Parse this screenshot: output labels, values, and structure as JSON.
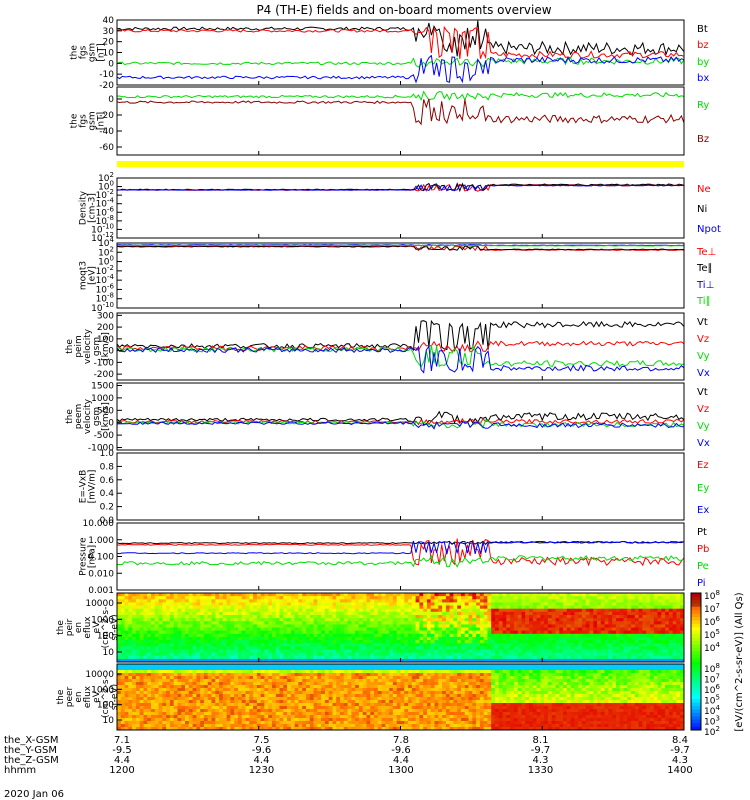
{
  "title": "P4 (TH-E) fields and on-board moments overview",
  "date_label": "2020 Jan 06",
  "colorbar": {
    "label": "[eV/(cm^2-s-sr-eV)] (All Qs)",
    "ticks": [
      "10^2",
      "10^3",
      "10^4",
      "10^5",
      "10^6",
      "10^7",
      "10^8"
    ],
    "upper_ticks": [
      "10^4",
      "10^5",
      "10^6",
      "10^7",
      "10^8"
    ]
  },
  "orbit": {
    "rows": [
      {
        "label": "the_X-GSM",
        "values": [
          "7.1",
          "7.5",
          "7.8",
          "8.1",
          "8.4"
        ]
      },
      {
        "label": "the_Y-GSM",
        "values": [
          "-9.5",
          "-9.6",
          "-9.6",
          "-9.7",
          "-9.7"
        ]
      },
      {
        "label": "the_Z-GSM",
        "values": [
          "4.4",
          "4.4",
          "4.4",
          "4.3",
          "4.3"
        ]
      },
      {
        "label": "hhmm",
        "values": [
          "1200",
          "1230",
          "1300",
          "1330",
          "1400"
        ]
      }
    ]
  },
  "chart_data": [
    {
      "type": "line",
      "ylabel": [
        "the",
        "fgs",
        "gsm",
        "[nT]"
      ],
      "ylim": [
        -20,
        40
      ],
      "yticks": [
        "-20",
        "-10",
        "0",
        "10",
        "20",
        "30",
        "40"
      ],
      "series": [
        {
          "name": "Bt",
          "color": "#000000",
          "pre": 32,
          "post": 14,
          "noise_pre": 1.5,
          "noise_post": 6
        },
        {
          "name": "bz",
          "color": "#ff0000",
          "pre": 30,
          "post": 8,
          "noise_pre": 1.2,
          "noise_post": 3
        },
        {
          "name": "by",
          "color": "#00dd00",
          "pre": 0,
          "post": 2,
          "noise_pre": 1.2,
          "noise_post": 3
        },
        {
          "name": "bx",
          "color": "#0000ff",
          "pre": -13,
          "post": 3,
          "noise_pre": 1.2,
          "noise_post": 3
        }
      ]
    },
    {
      "type": "line",
      "ylabel": [
        "the",
        "fgs",
        "gsm",
        "[nT]"
      ],
      "ylim": [
        -70,
        15
      ],
      "yticks": [
        "-60",
        "-40",
        "-20",
        "0"
      ],
      "series": [
        {
          "name": "Ry",
          "color": "#00dd00",
          "pre": 3,
          "post": 5,
          "noise_pre": 1.5,
          "noise_post": 3
        },
        {
          "name": "Bz",
          "color": "#8b0000",
          "pre": -4,
          "post": -25,
          "noise_pre": 1.5,
          "noise_post": 5
        }
      ]
    },
    {
      "type": "line",
      "ylabel": [
        "Density",
        "[cm-3]"
      ],
      "ylim": [
        -12,
        3
      ],
      "log": true,
      "yticks": [
        "10^2",
        "10^0",
        "10^-2",
        "10^-4",
        "10^-6",
        "10^-8",
        "10^-10",
        "10^-12"
      ],
      "series": [
        {
          "name": "Ne",
          "color": "#ff0000",
          "pre": 0,
          "post": 1.2,
          "noise_pre": 0.1,
          "noise_post": 0.2
        },
        {
          "name": "Ni",
          "color": "#000000",
          "pre": 0.1,
          "post": 1.3,
          "noise_pre": 0.1,
          "noise_post": 0.2
        },
        {
          "name": "Npot",
          "color": "#0000ff",
          "pre": 0,
          "post": 1.1,
          "noise_pre": 0.05,
          "noise_post": 0.1
        }
      ]
    },
    {
      "type": "line",
      "ylabel": [
        "moqt3",
        "[eV]"
      ],
      "ylim": [
        -10,
        4
      ],
      "log": true,
      "yticks": [
        "10^4",
        "10^2",
        "10^0",
        "10^-2",
        "10^-4",
        "10^-6",
        "10^-8",
        "10^-10"
      ],
      "series": [
        {
          "name": "Te⊥",
          "color": "#ff0000",
          "pre": 3.2,
          "post": 2.5,
          "noise_pre": 0.1,
          "noise_post": 0.1
        },
        {
          "name": "Te∥",
          "color": "#000000",
          "pre": 3.3,
          "post": 2.6,
          "noise_pre": 0.1,
          "noise_post": 0.1
        },
        {
          "name": "Ti⊥",
          "color": "#0000ff",
          "pre": 3.6,
          "post": 3.5,
          "noise_pre": 0.05,
          "noise_post": 0.05
        },
        {
          "name": "Ti∥",
          "color": "#00dd00",
          "pre": 3.5,
          "post": 3.4,
          "noise_pre": 0.05,
          "noise_post": 0.05
        }
      ]
    },
    {
      "type": "line",
      "ylabel": [
        "the",
        "peim",
        "velocity",
        "gsm",
        "[km/s]"
      ],
      "ylim": [
        -250,
        320
      ],
      "yticks": [
        "-200",
        "-100",
        "0",
        "100",
        "200",
        "300"
      ],
      "series": [
        {
          "name": "Vt",
          "color": "#000000",
          "pre": 40,
          "post": 220,
          "noise_pre": 20,
          "noise_post": 25
        },
        {
          "name": "Vz",
          "color": "#ff0000",
          "pre": 20,
          "post": 60,
          "noise_pre": 20,
          "noise_post": 20
        },
        {
          "name": "Vy",
          "color": "#00dd00",
          "pre": 10,
          "post": -110,
          "noise_pre": 20,
          "noise_post": 25
        },
        {
          "name": "Vx",
          "color": "#0000ff",
          "pre": 5,
          "post": -150,
          "noise_pre": 20,
          "noise_post": 25
        }
      ]
    },
    {
      "type": "line",
      "ylabel": [
        "the",
        "peem",
        "velocity",
        "gsm",
        "[km/s]"
      ],
      "ylim": [
        -1100,
        1600
      ],
      "yticks": [
        "-1000",
        "-500",
        "0",
        "500",
        "1000",
        "1500"
      ],
      "series": [
        {
          "name": "Vt",
          "color": "#000000",
          "pre": 120,
          "post": 250,
          "noise_pre": 60,
          "noise_post": 150
        },
        {
          "name": "Vz",
          "color": "#ff0000",
          "pre": 40,
          "post": 50,
          "noise_pre": 50,
          "noise_post": 80
        },
        {
          "name": "Vy",
          "color": "#00dd00",
          "pre": 0,
          "post": -80,
          "noise_pre": 50,
          "noise_post": 90
        },
        {
          "name": "Vx",
          "color": "#0000ff",
          "pre": -20,
          "post": -100,
          "noise_pre": 50,
          "noise_post": 100
        }
      ]
    },
    {
      "type": "line",
      "ylabel": [
        "E=-VxB",
        "[mV/m]"
      ],
      "ylim": [
        0,
        1
      ],
      "yticks": [
        "0.0",
        "0.2",
        "0.4",
        "0.6",
        "0.8",
        "1.0"
      ],
      "series": [
        {
          "name": "Ez",
          "color": "#ff0000"
        },
        {
          "name": "Ey",
          "color": "#00dd00"
        },
        {
          "name": "Ex",
          "color": "#0000ff"
        }
      ]
    },
    {
      "type": "line",
      "ylabel": [
        "Pressure",
        "[nPa]"
      ],
      "ylim": [
        -3,
        1
      ],
      "log": true,
      "yticks": [
        "10.000",
        "1.000",
        "0.100",
        "0.010",
        "0.001"
      ],
      "series": [
        {
          "name": "Pt",
          "color": "#000000",
          "pre": -0.2,
          "post": -0.15,
          "noise_pre": 0.03,
          "noise_post": 0.05
        },
        {
          "name": "Pb",
          "color": "#ff0000",
          "pre": -0.3,
          "post": -1.3,
          "noise_pre": 0.03,
          "noise_post": 0.25
        },
        {
          "name": "Pe",
          "color": "#00dd00",
          "pre": -1.4,
          "post": -1.1,
          "noise_pre": 0.1,
          "noise_post": 0.15
        },
        {
          "name": "Pi",
          "color": "#0000ff",
          "pre": -0.8,
          "post": -0.15,
          "noise_pre": 0.03,
          "noise_post": 0.05
        }
      ]
    },
    {
      "type": "heatmap",
      "ylabel": [
        "the",
        "peir",
        "en",
        "eflux",
        "eV",
        "(cm^2-s-",
        "sr-eV)"
      ],
      "ylim": [
        5,
        30000
      ],
      "yticks": [
        "10000",
        "1000",
        "100",
        "10"
      ]
    },
    {
      "type": "heatmap",
      "ylabel": [
        "the",
        "peer",
        "en",
        "eflux",
        "eV",
        "(cm^2-s-",
        "sr-eV)"
      ],
      "ylim": [
        5,
        30000
      ],
      "yticks": [
        "10000",
        "1000",
        "100",
        "10"
      ]
    }
  ]
}
